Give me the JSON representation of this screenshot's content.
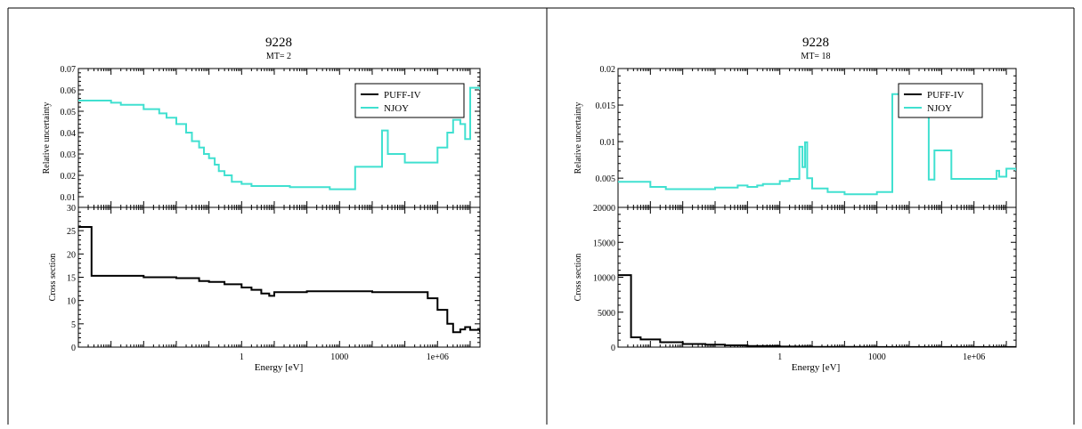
{
  "colors": {
    "puff": "#000000",
    "njoy": "#40e0d0",
    "axis": "#000000"
  },
  "chart_data": [
    {
      "type": "line",
      "title": "9228",
      "subtitle": "MT= 2",
      "xlabel": "Energy [eV]",
      "xscale": "log",
      "xlim": [
        1e-05,
        20000000
      ],
      "xticks": [
        "1",
        "1000",
        "1e+06"
      ],
      "legend": "top-right",
      "top": {
        "ylabel": "Relative uncertainty",
        "ylim": [
          0.005,
          0.07
        ],
        "yticks": [
          "0.01",
          "0.02",
          "0.03",
          "0.04",
          "0.05",
          "0.06",
          "0.07"
        ],
        "series": [
          {
            "name": "PUFF-IV",
            "x": [],
            "y": []
          },
          {
            "name": "NJOY",
            "x": [
              1e-05,
              0.0001,
              0.0002,
              0.0005,
              0.001,
              0.003,
              0.005,
              0.01,
              0.02,
              0.03,
              0.05,
              0.07,
              0.1,
              0.15,
              0.2,
              0.3,
              0.5,
              1,
              2,
              4,
              7,
              10,
              30,
              100,
              500,
              1000,
              3000,
              20000,
              30000,
              100000,
              1000000,
              2000000,
              3000000,
              5000000,
              7000000,
              10000000,
              20000000
            ],
            "y": [
              0.055,
              0.054,
              0.053,
              0.053,
              0.051,
              0.049,
              0.047,
              0.044,
              0.04,
              0.036,
              0.033,
              0.03,
              0.028,
              0.025,
              0.022,
              0.02,
              0.017,
              0.016,
              0.015,
              0.015,
              0.015,
              0.015,
              0.0145,
              0.0145,
              0.0135,
              0.0135,
              0.024,
              0.041,
              0.03,
              0.026,
              0.033,
              0.04,
              0.046,
              0.044,
              0.037,
              0.061,
              0.06
            ]
          }
        ]
      },
      "bottom": {
        "ylabel": "Cross section",
        "ylim": [
          0,
          30
        ],
        "yticks": [
          "0",
          "5",
          "10",
          "15",
          "20",
          "25",
          "30"
        ],
        "series": [
          {
            "name": "PUFF-IV",
            "x": [
              1e-05,
              2.53e-05,
              0.001,
              0.01,
              0.05,
              0.1,
              0.3,
              1,
              2,
              4,
              7,
              10,
              100,
              10000,
              500000,
              1000000,
              2000000,
              3000000,
              5000000,
              7000000,
              10000000,
              20000000
            ],
            "y": [
              25.8,
              15.3,
              15.0,
              14.8,
              14.2,
              14.0,
              13.5,
              12.8,
              12.3,
              11.5,
              11.0,
              11.8,
              12.0,
              11.8,
              10.5,
              8.0,
              5.0,
              3.2,
              3.8,
              4.3,
              3.7,
              3.2
            ]
          },
          {
            "name": "NJOY",
            "x": [],
            "y": []
          }
        ]
      }
    },
    {
      "type": "line",
      "title": "9228",
      "subtitle": "MT= 18",
      "xlabel": "Energy [eV]",
      "xscale": "log",
      "xlim": [
        1e-05,
        20000000
      ],
      "xticks": [
        "1",
        "1000",
        "1e+06"
      ],
      "legend": "top-right",
      "top": {
        "ylabel": "Relative uncertainty",
        "ylim": [
          0.001,
          0.02
        ],
        "yticks": [
          "0.005",
          "0.01",
          "0.015",
          "0.02"
        ],
        "series": [
          {
            "name": "PUFF-IV",
            "x": [],
            "y": []
          },
          {
            "name": "NJOY",
            "x": [
              1e-05,
              0.0001,
              0.0003,
              0.01,
              0.05,
              0.1,
              0.2,
              0.3,
              1,
              2,
              4,
              5,
              6,
              7,
              10,
              30,
              100,
              1000,
              3000,
              40000,
              60000,
              200000,
              300000,
              5000000,
              6000000,
              10000000,
              20000000
            ],
            "y": [
              0.0045,
              0.0038,
              0.0035,
              0.0037,
              0.004,
              0.0038,
              0.004,
              0.0042,
              0.0046,
              0.0049,
              0.0093,
              0.0065,
              0.0099,
              0.005,
              0.0036,
              0.0031,
              0.0028,
              0.0031,
              0.0165,
              0.0048,
              0.0088,
              0.0049,
              0.0049,
              0.006,
              0.0052,
              0.0063,
              0.006
            ]
          }
        ]
      },
      "bottom": {
        "ylabel": "Cross section",
        "ylim": [
          0,
          20000
        ],
        "yticks": [
          "0",
          "5000",
          "10000",
          "15000",
          "20000"
        ],
        "series": [
          {
            "name": "PUFF-IV",
            "x": [
              1e-05,
              2.53e-05,
              5e-05,
              0.0002,
              0.001,
              0.005,
              0.02,
              0.1,
              1,
              10,
              100,
              1000,
              20000000
            ],
            "y": [
              10300,
              1400,
              1100,
              700,
              450,
              350,
              250,
              150,
              80,
              40,
              20,
              10,
              0
            ]
          },
          {
            "name": "NJOY",
            "x": [],
            "y": []
          }
        ]
      }
    }
  ]
}
